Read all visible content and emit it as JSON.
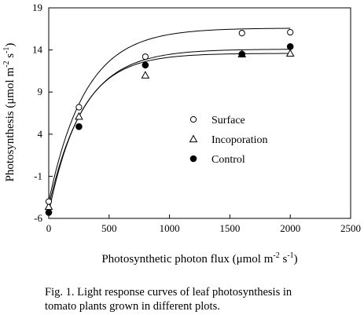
{
  "chart_data": {
    "type": "scatter",
    "xlabel_parts": {
      "main": "Photosynthetic photon flux (μmol m",
      "sup1": "-2",
      "mid": " s",
      "sup2": "-1",
      "end": ")"
    },
    "ylabel_parts": {
      "main": "Photosynthesis (μmol m",
      "sup1": "-2",
      "mid": " s",
      "sup2": "-1",
      "end": ")"
    },
    "xlim": [
      0,
      2500
    ],
    "ylim": [
      -6,
      19
    ],
    "xticks": [
      0,
      500,
      1000,
      1500,
      2000,
      2500
    ],
    "yticks": [
      -6,
      -1,
      4,
      9,
      14,
      19
    ],
    "grid": false,
    "legend_position": "center-right",
    "series": [
      {
        "name": "Surface",
        "marker": "open-circle",
        "x": [
          0,
          250,
          800,
          1600,
          2000
        ],
        "y": [
          -4.0,
          7.2,
          13.2,
          16.0,
          16.1
        ],
        "fit": {
          "pmax": 16.6,
          "k": 0.0033,
          "y0": -4.0
        }
      },
      {
        "name": "Incoporation",
        "marker": "open-triangle",
        "x": [
          0,
          250,
          800,
          1600,
          2000
        ],
        "y": [
          -4.6,
          6.1,
          11.0,
          13.5,
          13.6
        ],
        "fit": {
          "pmax": 14.1,
          "k": 0.0034,
          "y0": -4.6
        }
      },
      {
        "name": "Control",
        "marker": "filled-circle",
        "x": [
          0,
          250,
          800,
          1600,
          2000
        ],
        "y": [
          -5.3,
          4.9,
          12.2,
          13.5,
          14.4
        ],
        "fit": {
          "pmax": 13.6,
          "k": 0.0037,
          "y0": -5.3
        }
      }
    ]
  },
  "caption": {
    "line1": "Fig. 1. Light response curves of leaf photosynthesis in",
    "line2": "tomato plants grown in different plots."
  }
}
